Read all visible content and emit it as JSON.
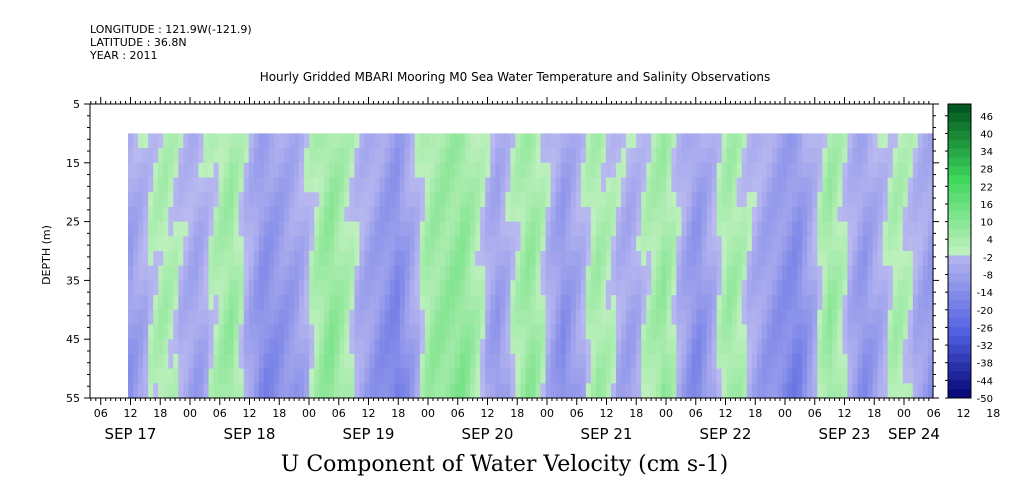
{
  "header": {
    "longitude": "LONGITUDE : 121.9W(-121.9)",
    "latitude": "LATITUDE : 36.8N",
    "year": "YEAR : 2011"
  },
  "chart_data": {
    "type": "heatmap",
    "title": "Hourly Gridded MBARI Mooring M0 Sea Water Temperature and Salinity Observations",
    "xlabel": "U Component of Water Velocity (cm s-1)",
    "ylabel": "DEPTH (m)",
    "ylim": [
      55,
      5
    ],
    "yticks": [
      5,
      15,
      25,
      35,
      45,
      55
    ],
    "x_hour_ticks": [
      "06",
      "12",
      "18",
      "00",
      "06",
      "12",
      "18",
      "00",
      "06",
      "12",
      "18",
      "00",
      "06",
      "12",
      "18",
      "00",
      "06",
      "12",
      "18",
      "00",
      "06",
      "12",
      "18",
      "00",
      "06",
      "12",
      "18",
      "00",
      "06",
      "12",
      "18",
      "00"
    ],
    "x_day_labels": [
      "SEP 17",
      "SEP 18",
      "SEP 19",
      "SEP 20",
      "SEP 21",
      "SEP 22",
      "SEP 23",
      "SEP 24"
    ],
    "data_depth_range": [
      10,
      55
    ],
    "data_start": "SEP 17 12:00",
    "colorbar": {
      "labels": [
        46,
        40,
        34,
        28,
        22,
        16,
        10,
        4,
        -2,
        -8,
        -14,
        -20,
        -26,
        -32,
        -38,
        -44,
        -50
      ],
      "min": -50,
      "max": 50,
      "step": 3
    },
    "velocity_pattern_cm_s": [
      -6,
      4,
      -4,
      7,
      -10,
      -5,
      9,
      -3,
      -12,
      6,
      9,
      -6,
      8,
      -9,
      5,
      -4,
      7,
      -10,
      6,
      -5,
      -12,
      7,
      -8,
      4,
      -6
    ]
  }
}
